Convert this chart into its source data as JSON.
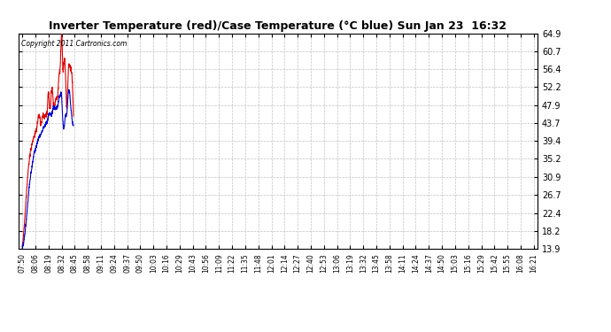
{
  "title": "Inverter Temperature (red)/Case Temperature (°C blue) Sun Jan 23  16:32",
  "copyright": "Copyright 2011 Cartronics.com",
  "ylim": [
    13.9,
    64.9
  ],
  "yticks": [
    13.9,
    18.2,
    22.4,
    26.7,
    30.9,
    35.2,
    39.4,
    43.7,
    47.9,
    52.2,
    56.4,
    60.7,
    64.9
  ],
  "bg_color": "#ffffff",
  "grid_color": "#aaaaaa",
  "red_color": "#dd0000",
  "blue_color": "#0000cc",
  "xtick_labels": [
    "07:50",
    "08:06",
    "08:19",
    "08:32",
    "08:45",
    "08:58",
    "09:11",
    "09:24",
    "09:37",
    "09:50",
    "10:03",
    "10:16",
    "10:29",
    "10:43",
    "10:56",
    "11:09",
    "11:22",
    "11:35",
    "11:48",
    "12:01",
    "12:14",
    "12:27",
    "12:40",
    "12:53",
    "13:06",
    "13:19",
    "13:32",
    "13:45",
    "13:58",
    "14:11",
    "14:24",
    "14:37",
    "14:50",
    "15:03",
    "15:16",
    "15:29",
    "15:42",
    "15:55",
    "16:08",
    "16:21"
  ],
  "red": [
    14.5,
    17.5,
    21.5,
    26.0,
    30.5,
    34.0,
    36.5,
    38.0,
    39.5,
    40.5,
    41.5,
    42.5,
    44.5,
    45.5,
    43.5,
    44.5,
    45.5,
    45.0,
    45.5,
    46.5,
    51.0,
    47.0,
    50.0,
    51.5,
    47.5,
    48.5,
    49.5,
    50.0,
    55.0,
    57.5,
    64.5,
    56.5,
    58.5,
    54.5,
    47.5,
    55.5,
    57.0,
    56.5,
    54.5,
    45.5
  ],
  "blue": [
    14.0,
    15.5,
    17.5,
    20.5,
    24.0,
    27.5,
    30.5,
    32.5,
    34.5,
    36.5,
    37.5,
    38.5,
    39.5,
    40.5,
    41.0,
    41.5,
    42.5,
    43.0,
    43.5,
    44.0,
    45.5,
    46.0,
    45.5,
    46.5,
    47.5,
    47.0,
    47.5,
    47.5,
    49.5,
    50.5,
    50.0,
    44.0,
    43.0,
    45.5,
    46.0,
    50.5,
    51.0,
    47.5,
    44.5,
    43.0
  ]
}
